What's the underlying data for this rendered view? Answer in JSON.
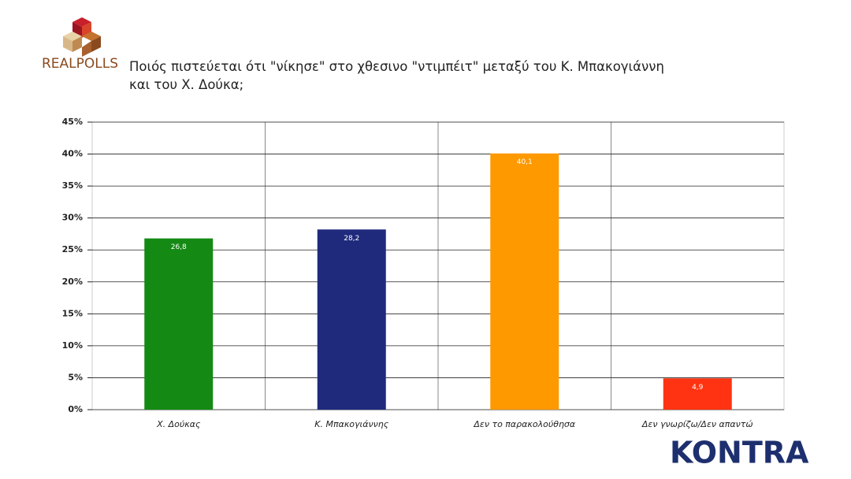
{
  "logo": "REALPOLLS",
  "brand": "KONTRA",
  "chart_data": {
    "type": "bar",
    "title": "Ποιός πιστεύεται ότι \"νίκησε\" στο χθεσινο \"ντιμπέιτ\" μεταξύ του Κ. Μπακογιάννη και του Χ. Δούκα;",
    "categories": [
      "Χ. Δούκας",
      "Κ. Μπακογιάννης",
      "Δεν το παρακολούθησα",
      "Δεν γνωρίζω/Δεν απαντώ"
    ],
    "values": [
      26.8,
      28.2,
      40.1,
      4.9
    ],
    "value_labels": [
      "26,8",
      "28,2",
      "40,1",
      "4,9"
    ],
    "colors": [
      "#148a14",
      "#1f2a7c",
      "#ff9900",
      "#ff3311"
    ],
    "ylim": [
      0,
      45
    ],
    "yticks": [
      {
        "value": 0,
        "label": "0%"
      },
      {
        "value": 5,
        "label": "5%"
      },
      {
        "value": 10,
        "label": "10%"
      },
      {
        "value": 15,
        "label": "15%"
      },
      {
        "value": 20,
        "label": "20%"
      },
      {
        "value": 25,
        "label": "25%"
      },
      {
        "value": 30,
        "label": "30%"
      },
      {
        "value": 35,
        "label": "35%"
      },
      {
        "value": 40,
        "label": "40%"
      },
      {
        "value": 45,
        "label": "45%"
      }
    ],
    "grid": true
  }
}
